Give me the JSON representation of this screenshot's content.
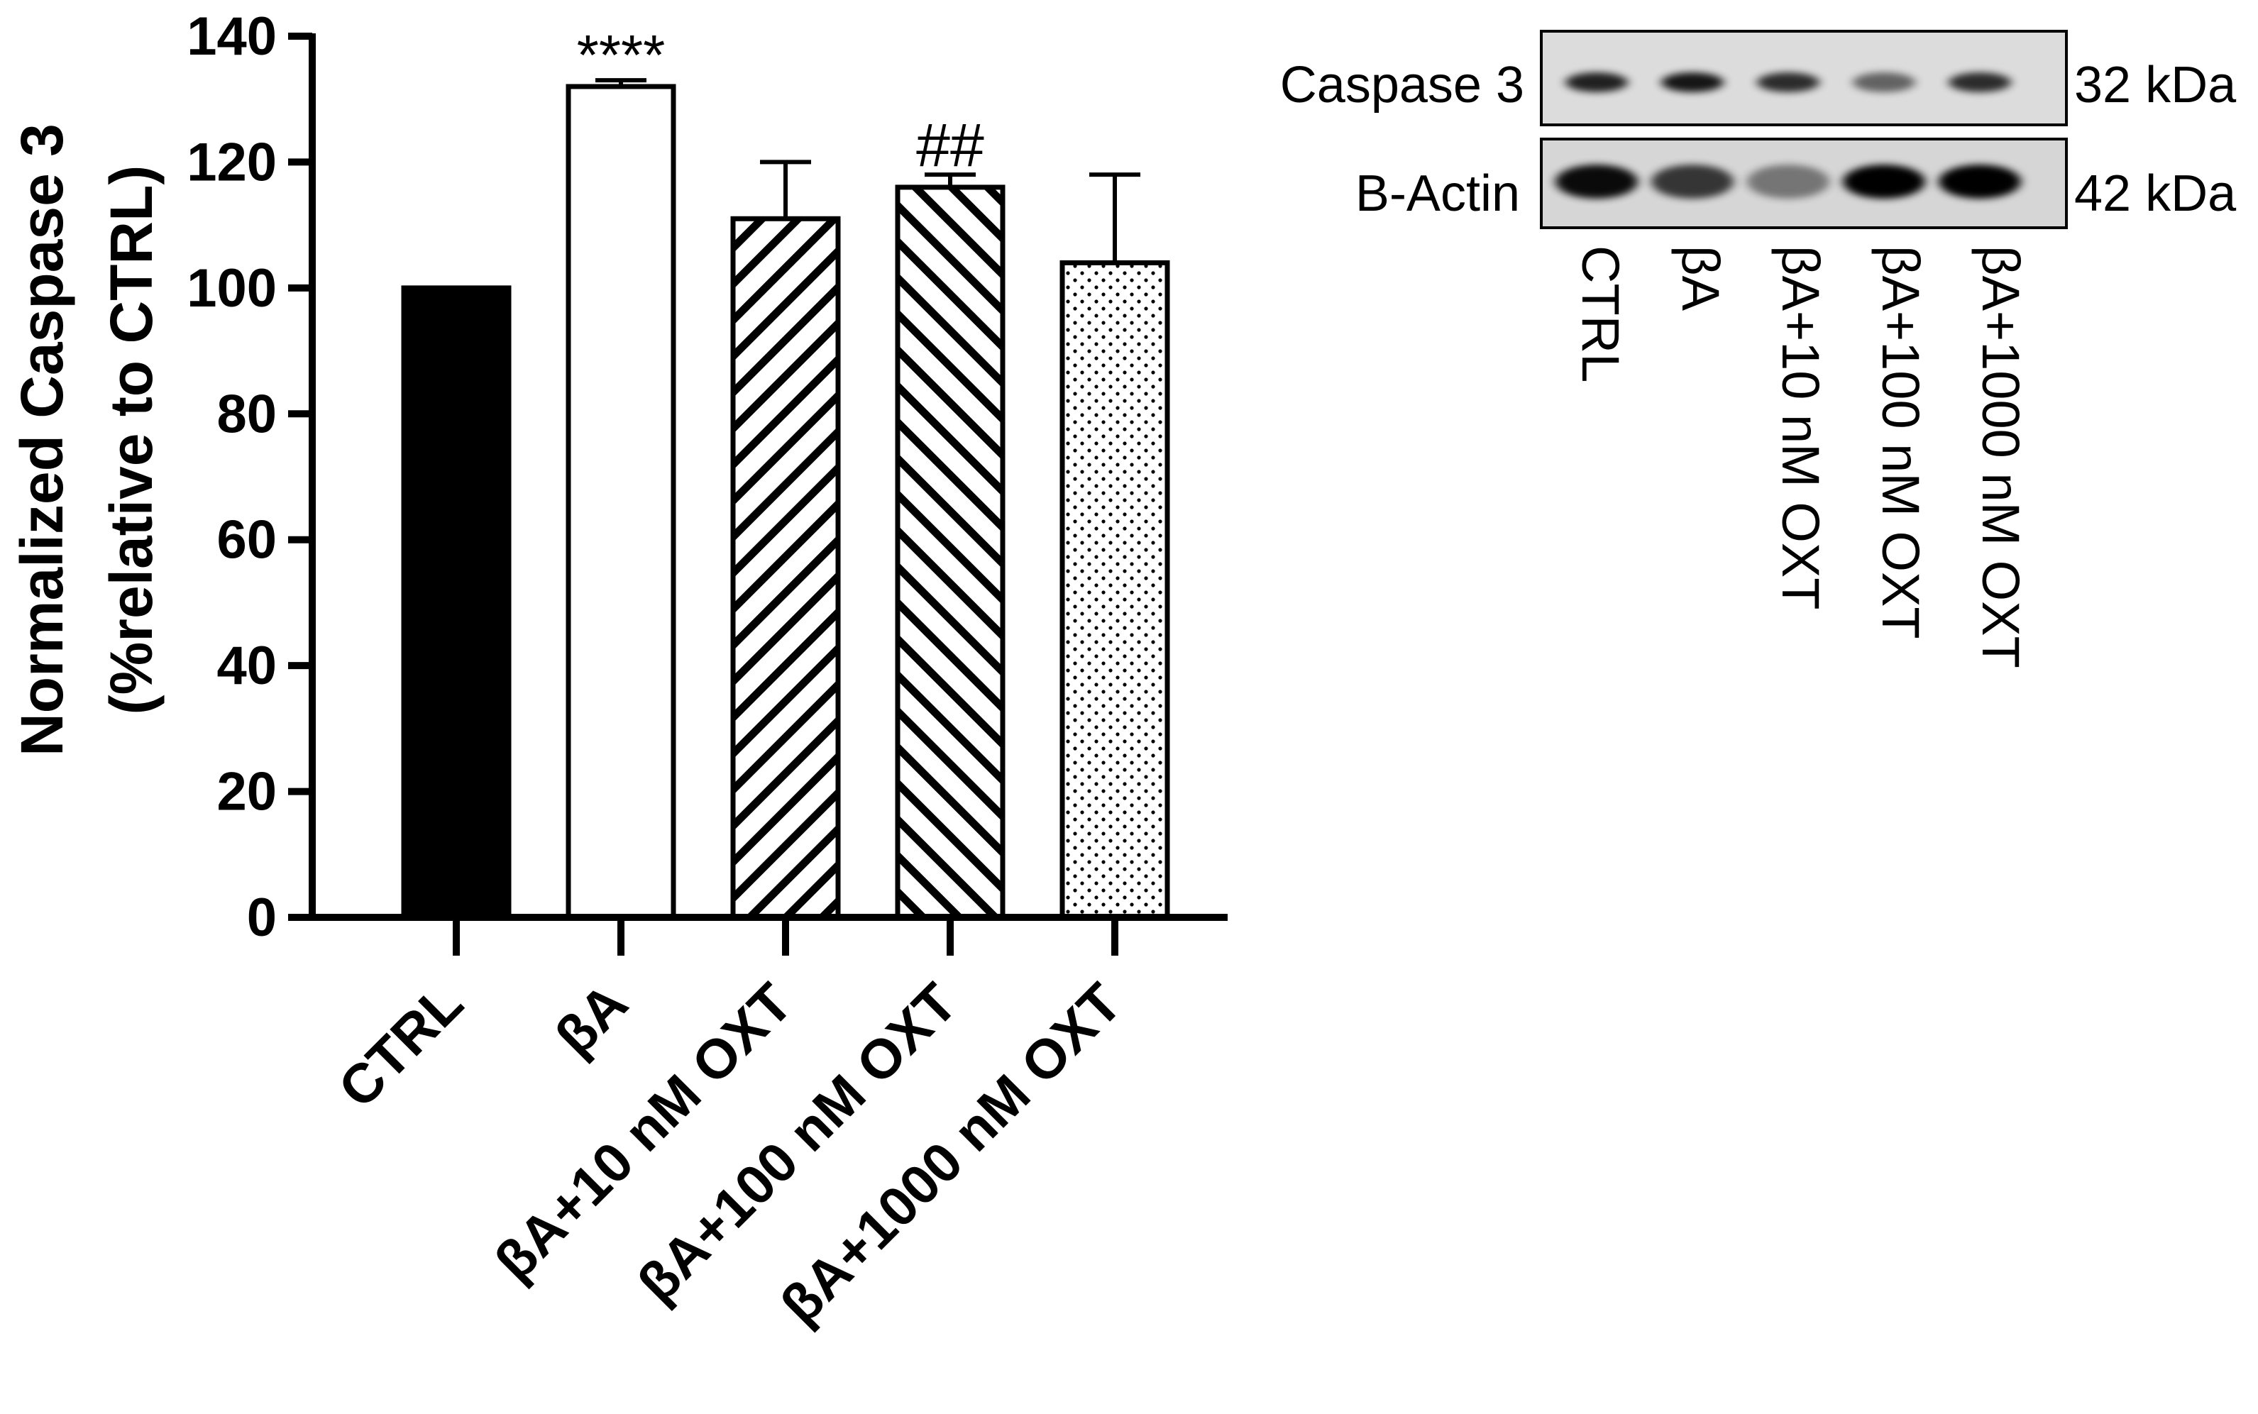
{
  "chart_data": {
    "type": "bar",
    "ylabel_line1": "Normalized Caspase 3",
    "ylabel_line2": "(%relative to CTRL)",
    "ylim": [
      0,
      140
    ],
    "yticks": [
      "0",
      "20",
      "40",
      "60",
      "80",
      "100",
      "120",
      "140"
    ],
    "categories": [
      "CTRL",
      "βA",
      "βA+10 nM OXT",
      "βA+100 nM OXT",
      "βA+1000 nM OXT"
    ],
    "values": [
      100,
      132,
      111,
      116,
      104
    ],
    "errors": [
      0,
      1,
      9,
      2,
      14
    ],
    "fills": [
      "solid-black",
      "white",
      "diagonal-up-hatch",
      "diagonal-down-hatch",
      "dots"
    ],
    "annotations": [
      "",
      "****",
      "",
      "##",
      ""
    ],
    "grid": false,
    "legend": "none"
  },
  "western_blot": {
    "rows": [
      {
        "label": "Caspase 3",
        "size": "32 kDa"
      },
      {
        "label": "B-Actin",
        "size": "42 kDa"
      }
    ],
    "lanes": [
      "CTRL",
      "βA",
      "βA+10 nM OXT",
      "βA+100 nM OXT",
      "βA+1000 nM OXT"
    ],
    "caspase3_band_intensity": [
      0.85,
      0.9,
      0.8,
      0.55,
      0.8
    ],
    "bactin_band_intensity": [
      0.95,
      0.75,
      0.45,
      1.0,
      1.0
    ]
  },
  "colors": {
    "ink": "#000000",
    "background": "#ffffff",
    "blot_background": "#dcdcdc"
  }
}
